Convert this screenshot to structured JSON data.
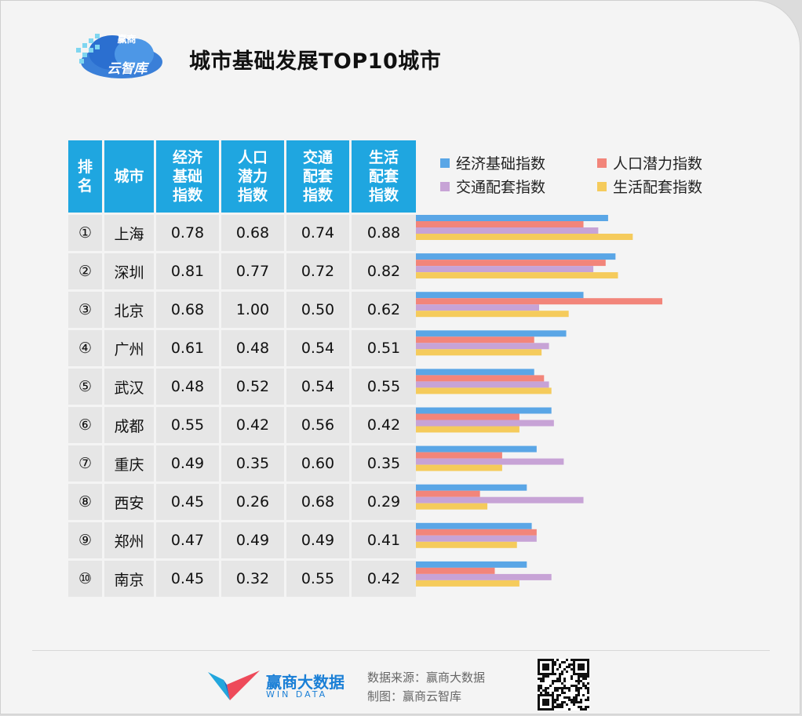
{
  "logo": {
    "line1": "赢商",
    "line2": "云智库"
  },
  "title": "城市基础发展TOP10城市",
  "table": {
    "headers": [
      "排\n名",
      "城市",
      "经济\n基础\n指数",
      "人口\n潜力\n指数",
      "交通\n配套\n指数",
      "生活\n配套\n指数"
    ]
  },
  "legend": [
    "经济基础指数",
    "人口潜力指数",
    "交通配套指数",
    "生活配套指数"
  ],
  "colors": {
    "economy": "#5aa6e6",
    "population": "#f2857a",
    "traffic": "#c7a3d6",
    "life": "#f5cb5c",
    "header": "#1fa6e0"
  },
  "chart_data": {
    "type": "bar",
    "orientation": "horizontal",
    "categories": [
      "上海",
      "深圳",
      "北京",
      "广州",
      "武汉",
      "成都",
      "重庆",
      "西安",
      "郑州",
      "南京"
    ],
    "ranks": [
      "①",
      "②",
      "③",
      "④",
      "⑤",
      "⑥",
      "⑦",
      "⑧",
      "⑨",
      "⑩"
    ],
    "series": [
      {
        "name": "经济基础指数",
        "values": [
          "0.78",
          "0.81",
          "0.68",
          "0.61",
          "0.48",
          "0.55",
          "0.49",
          "0.45",
          "0.47",
          "0.45"
        ]
      },
      {
        "name": "人口潜力指数",
        "values": [
          "0.68",
          "0.77",
          "1.00",
          "0.48",
          "0.52",
          "0.42",
          "0.35",
          "0.26",
          "0.49",
          "0.32"
        ]
      },
      {
        "name": "交通配套指数",
        "values": [
          "0.74",
          "0.72",
          "0.50",
          "0.54",
          "0.54",
          "0.56",
          "0.60",
          "0.68",
          "0.49",
          "0.55"
        ]
      },
      {
        "name": "生活配套指数",
        "values": [
          "0.88",
          "0.82",
          "0.62",
          "0.51",
          "0.55",
          "0.42",
          "0.35",
          "0.29",
          "0.41",
          "0.42"
        ]
      }
    ],
    "xlim": [
      0,
      1
    ]
  },
  "footer": {
    "brand": "赢商大数据",
    "brand_en": "WIN DATA",
    "source": "数据来源：赢商大数据",
    "maker": "制图：赢商云智库"
  }
}
